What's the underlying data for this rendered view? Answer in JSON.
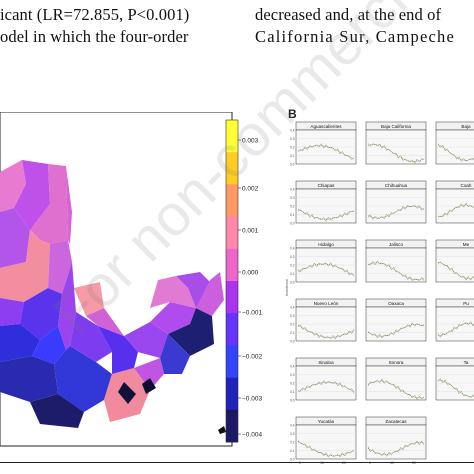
{
  "text": {
    "left_line1": "icant (LR=72.855, P<0.001)",
    "left_line2": "odel in which the four-order",
    "right_line1": "decreased and, at the end of",
    "right_line2": "California Sur, Campeche"
  },
  "colorbar": {
    "ticks": [
      "0.003",
      "0.002",
      "0.001",
      "0.000",
      "−0.001",
      "−0.002",
      "−0.003",
      "−0.004"
    ],
    "colors": [
      "#ffff33",
      "#ffcc22",
      "#ff9966",
      "#ff88aa",
      "#ee66cc",
      "#aa33ee",
      "#6633ff",
      "#3344ff",
      "#2222bb",
      "#1a1a66"
    ]
  },
  "panel_b": {
    "label": "B",
    "ylabel": "Incidence",
    "states": [
      "Aguascalientes",
      "Baja California",
      "Baja",
      "Chiapas",
      "Chihuahua",
      "Coah",
      "Hidalgo",
      "Jalisco",
      "Me",
      "Nuevo León",
      "Oaxaca",
      "Pu",
      "Sinaloa",
      "Sonora",
      "Ta",
      "Yucatán",
      "Zacatecas",
      ""
    ],
    "yticks": [
      "0.4",
      "0.3",
      "0.2",
      "0.1",
      "0.0"
    ],
    "xticks": [
      "0",
      "10",
      "20"
    ]
  },
  "watermark": "For non-commercial use only"
}
